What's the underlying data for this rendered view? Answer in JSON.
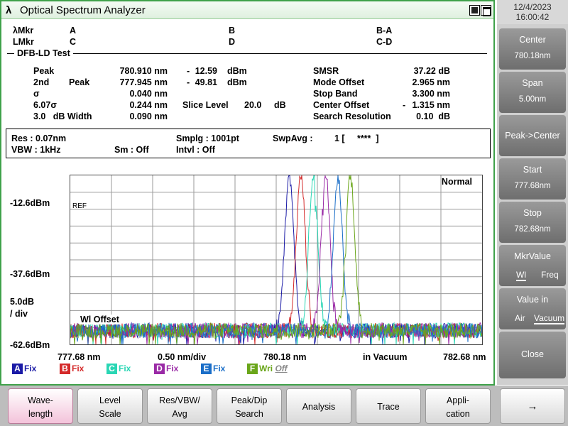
{
  "window": {
    "title": "Optical Spectrum Analyzer",
    "icon": "λ"
  },
  "clock": {
    "date": "12/4/2023",
    "time": "16:00:42"
  },
  "markers": {
    "lmkr_label": "λMkr",
    "lmkr_a": "A",
    "lmkr_b": "B",
    "lmkr_ba": "B-A",
    "lvl_label": "LMkr",
    "lvl_c": "C",
    "lvl_d": "D",
    "lvl_cd": "C-D"
  },
  "dfb": {
    "title": "DFB-LD Test",
    "peak_label": "Peak",
    "peak_wl": "780.910 nm",
    "peak_sign": "-",
    "peak_lvl": "12.59",
    "peak_unit": "dBm",
    "second_label": "2nd",
    "second_peak_label": "Peak",
    "second_wl": "777.945 nm",
    "second_sign": "-",
    "second_lvl": "49.81",
    "second_unit": "dBm",
    "sigma_label": "σ",
    "sigma_val": "0.040 nm",
    "sigma6_label": "6.07σ",
    "sigma6_val": "0.244 nm",
    "width_label": "3.0   dB Width",
    "width_val": "0.090 nm",
    "slice_label": "Slice Level",
    "slice_val": "20.0",
    "slice_unit": "dB",
    "smsr_label": "SMSR",
    "smsr_val": "37.22 dB",
    "mode_label": "Mode Offset",
    "mode_val": "2.965 nm",
    "stop_label": "Stop Band",
    "stop_val": "3.300 nm",
    "center_label": "Center Offset",
    "center_sign": "-",
    "center_val": "1.315 nm",
    "res_label": "Search Resolution",
    "res_val": "0.10  dB"
  },
  "params": {
    "res": "Res :  0.07nm",
    "vbw": "VBW :   1kHz",
    "smplg": "Smplg :   1001pt",
    "sm": "Sm :   Off",
    "intvl": "Intvl :   Off",
    "swpavg": "SwpAvg :",
    "swpavg_val": "1 [     ****  ]"
  },
  "plot": {
    "mode": "Normal",
    "ref": "REF",
    "offset": "Wl Offset",
    "ref_level": "-12.6dBm",
    "mid_level": "-37.6dBm",
    "scale": "5.0dB",
    "scale_unit": "/ div",
    "bottom_level": "-62.6dBm",
    "start": "777.68 nm",
    "per_div": "0.50 nm/div",
    "center": "780.18 nm",
    "medium": "in Vacuum",
    "stop": "782.68 nm"
  },
  "traces": [
    {
      "letter": "A",
      "label": "Fix",
      "color": "#1a1aa6"
    },
    {
      "letter": "B",
      "label": "Fix",
      "color": "#d42a2a"
    },
    {
      "letter": "C",
      "label": "Fix",
      "color": "#2ad6b4"
    },
    {
      "letter": "D",
      "label": "Fix",
      "color": "#9a2aa6"
    },
    {
      "letter": "E",
      "label": "Fix",
      "color": "#1a6ec8"
    },
    {
      "letter": "F",
      "label": "Wri",
      "extra": "Off",
      "color": "#6aa61a"
    }
  ],
  "chart_data": {
    "type": "line",
    "xlabel": "",
    "ylabel": "",
    "xlim": [
      777.68,
      782.68
    ],
    "ylim": [
      -62.6,
      -12.6
    ],
    "noise_floor": -58.5,
    "series": [
      {
        "color": "#1a1aa6",
        "peak_x": 780.34,
        "peak_y": -12.6
      },
      {
        "color": "#d42a2a",
        "peak_x": 780.48,
        "peak_y": -12.6
      },
      {
        "color": "#2ad6b4",
        "peak_x": 780.63,
        "peak_y": -12.6
      },
      {
        "color": "#9a2aa6",
        "peak_x": 780.78,
        "peak_y": -12.6
      },
      {
        "color": "#1a6ec8",
        "peak_x": 780.93,
        "peak_y": -12.6
      },
      {
        "color": "#6aa61a",
        "peak_x": 781.08,
        "peak_y": -12.6
      }
    ]
  },
  "softkeys": {
    "center_label": "Center",
    "center_val": "780.18nm",
    "span_label": "Span",
    "span_val": "5.00nm",
    "peak_center": "Peak->Center",
    "start_label": "Start",
    "start_val": "777.68nm",
    "stop_label": "Stop",
    "stop_val": "782.68nm",
    "mkr_label": "MkrValue",
    "mkr_opt1": "Wl",
    "mkr_opt2": "Freq",
    "value_label": "Value in",
    "value_opt1": "Air",
    "value_opt2": "Vacuum",
    "close": "Close"
  },
  "function_keys": {
    "wave_1": "Wave-",
    "wave_2": "length",
    "level_1": "Level",
    "level_2": "Scale",
    "res_1": "Res/VBW/",
    "res_2": "Avg",
    "peak_1": "Peak/Dip",
    "peak_2": "Search",
    "analysis": "Analysis",
    "trace": "Trace",
    "app_1": "Appli-",
    "app_2": "cation",
    "arrow": "→"
  }
}
